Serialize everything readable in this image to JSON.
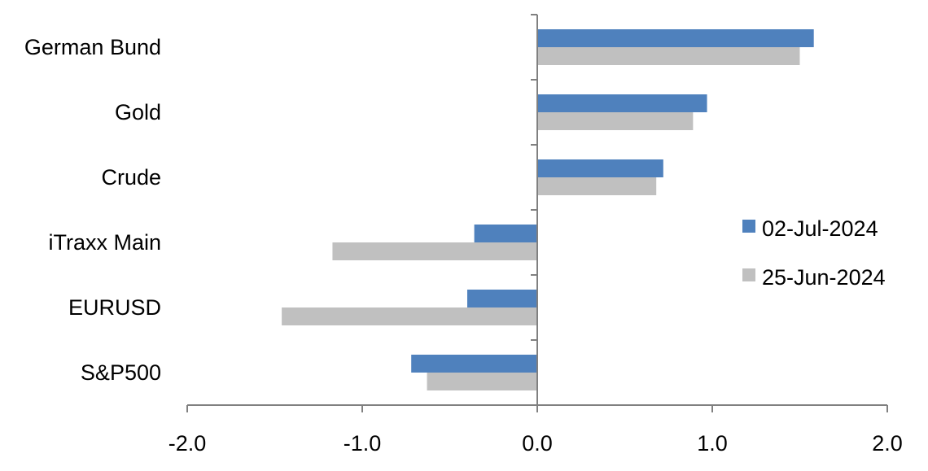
{
  "chart_data": {
    "type": "bar",
    "orientation": "horizontal",
    "categories": [
      "German Bund",
      "Gold",
      "Crude",
      "iTraxx Main",
      "EURUSD",
      "S&P500"
    ],
    "series": [
      {
        "name": "02-Jul-2024",
        "color": "#4F81BD",
        "values": [
          1.58,
          0.97,
          0.72,
          -0.36,
          -0.4,
          -0.72
        ]
      },
      {
        "name": "25-Jun-2024",
        "color": "#C0C0C0",
        "values": [
          1.5,
          0.89,
          0.68,
          -1.17,
          -1.46,
          -0.63
        ]
      }
    ],
    "xlim": [
      -2.0,
      2.0
    ],
    "xticks": [
      "-2.0",
      "-1.0",
      "0.0",
      "1.0",
      "2.0"
    ],
    "grid": false,
    "legend_position": "right"
  }
}
